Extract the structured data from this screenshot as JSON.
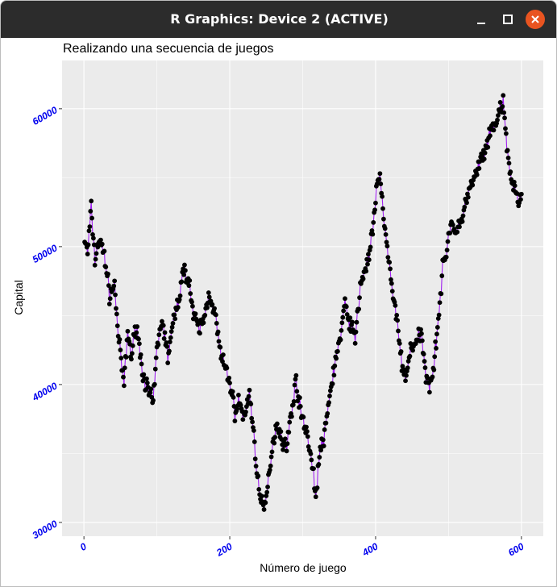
{
  "window": {
    "title": "R Graphics: Device 2 (ACTIVE)",
    "buttons": [
      "minimize",
      "maximize",
      "close"
    ],
    "close_color": "#e95420"
  },
  "chart_data": {
    "type": "line",
    "title": "Realizando una secuencia de juegos",
    "xlabel": "Número de juego",
    "ylabel": "Capital",
    "xlim": [
      -30,
      630
    ],
    "ylim": [
      29000,
      63500
    ],
    "x_ticks": [
      0,
      200,
      400,
      600
    ],
    "x_tick_labels": [
      "0",
      "200",
      "400",
      "600"
    ],
    "y_ticks": [
      30000,
      40000,
      50000,
      60000
    ],
    "y_tick_labels": [
      "30000",
      "40000",
      "50000",
      "60000"
    ],
    "tick_label_color": "#0000ee",
    "tick_label_rotation_deg": 30,
    "line_color": "#a020f0",
    "point_color": "#000000",
    "panel_background": "#ebebeb",
    "grid_color": "#ffffff",
    "grid": true,
    "legend": "none",
    "n_points": 600,
    "anchors": [
      [
        1,
        50500
      ],
      [
        5,
        49500
      ],
      [
        10,
        52800
      ],
      [
        15,
        49000
      ],
      [
        20,
        50500
      ],
      [
        28,
        49500
      ],
      [
        35,
        46500
      ],
      [
        42,
        47200
      ],
      [
        48,
        43000
      ],
      [
        55,
        40000
      ],
      [
        60,
        43800
      ],
      [
        65,
        42000
      ],
      [
        72,
        44500
      ],
      [
        80,
        41000
      ],
      [
        88,
        39500
      ],
      [
        95,
        38600
      ],
      [
        100,
        42500
      ],
      [
        107,
        44800
      ],
      [
        115,
        42000
      ],
      [
        122,
        44300
      ],
      [
        130,
        46300
      ],
      [
        138,
        48500
      ],
      [
        145,
        47200
      ],
      [
        150,
        45000
      ],
      [
        158,
        44000
      ],
      [
        165,
        44800
      ],
      [
        172,
        46700
      ],
      [
        180,
        45000
      ],
      [
        188,
        42000
      ],
      [
        195,
        41000
      ],
      [
        200,
        40200
      ],
      [
        207,
        38000
      ],
      [
        213,
        38800
      ],
      [
        220,
        37500
      ],
      [
        227,
        39500
      ],
      [
        232,
        36800
      ],
      [
        237,
        34000
      ],
      [
        242,
        31500
      ],
      [
        247,
        30900
      ],
      [
        252,
        32500
      ],
      [
        258,
        35500
      ],
      [
        265,
        37200
      ],
      [
        272,
        36000
      ],
      [
        278,
        35400
      ],
      [
        285,
        38200
      ],
      [
        291,
        40300
      ],
      [
        297,
        38000
      ],
      [
        305,
        36800
      ],
      [
        312,
        34500
      ],
      [
        318,
        32000
      ],
      [
        324,
        35300
      ],
      [
        330,
        36200
      ],
      [
        337,
        39200
      ],
      [
        345,
        41800
      ],
      [
        352,
        43500
      ],
      [
        358,
        45800
      ],
      [
        365,
        44500
      ],
      [
        372,
        43300
      ],
      [
        380,
        47500
      ],
      [
        387,
        48500
      ],
      [
        393,
        50000
      ],
      [
        398,
        52000
      ],
      [
        402,
        54500
      ],
      [
        407,
        55000
      ],
      [
        412,
        51500
      ],
      [
        418,
        49000
      ],
      [
        424,
        46200
      ],
      [
        430,
        44700
      ],
      [
        436,
        41300
      ],
      [
        442,
        40500
      ],
      [
        448,
        42800
      ],
      [
        455,
        42800
      ],
      [
        462,
        43800
      ],
      [
        468,
        41000
      ],
      [
        474,
        40000
      ],
      [
        480,
        41500
      ],
      [
        486,
        44800
      ],
      [
        492,
        48300
      ],
      [
        498,
        50000
      ],
      [
        504,
        52000
      ],
      [
        510,
        50800
      ],
      [
        516,
        51500
      ],
      [
        522,
        53000
      ],
      [
        528,
        54000
      ],
      [
        534,
        54700
      ],
      [
        540,
        55600
      ],
      [
        546,
        56500
      ],
      [
        552,
        57000
      ],
      [
        558,
        58300
      ],
      [
        564,
        58900
      ],
      [
        570,
        59800
      ],
      [
        575,
        60300
      ],
      [
        580,
        57200
      ],
      [
        585,
        55200
      ],
      [
        590,
        54200
      ],
      [
        595,
        53500
      ],
      [
        600,
        53300
      ]
    ]
  }
}
